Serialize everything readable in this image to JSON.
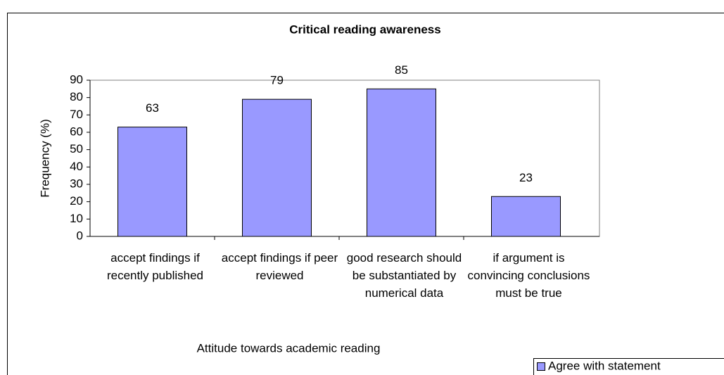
{
  "chart_data": {
    "type": "bar",
    "title": "Critical reading awareness",
    "categories": [
      "accept findings if recently published",
      "accept findings if peer reviewed",
      "good research should be substantiated by numerical data",
      "if argument is convincing conclusions must be true"
    ],
    "series": [
      {
        "name": "Agree with statement",
        "color": "#9999ff",
        "values": [
          63,
          79,
          85,
          23
        ]
      }
    ],
    "ylim": [
      0,
      90
    ],
    "yticks": [
      0,
      10,
      20,
      30,
      40,
      50,
      60,
      70,
      80,
      90
    ],
    "y_label": "Frequency (%)",
    "x_label": "Attitude towards academic reading",
    "grid": false,
    "legend": "bottom-right"
  }
}
